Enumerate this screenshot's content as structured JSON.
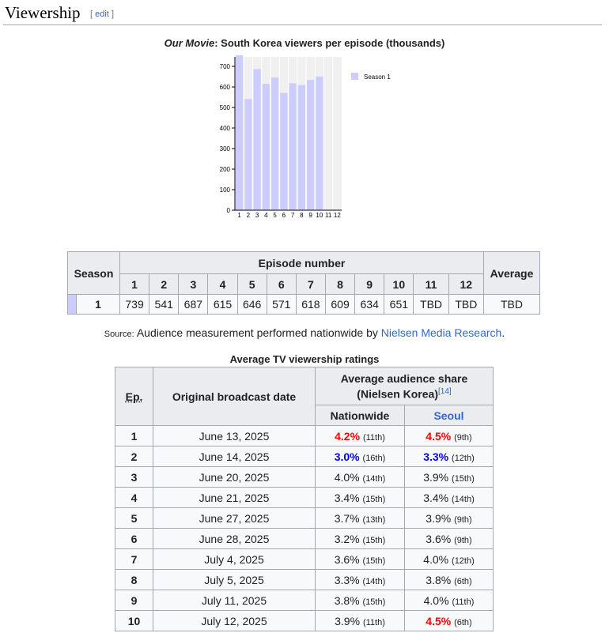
{
  "section": {
    "title": "Viewership",
    "edit_open": "[",
    "edit_label": "edit",
    "edit_close": "]"
  },
  "chart_title": {
    "italic": "Our Movie",
    "rest": ": South Korea viewers per episode (thousands)"
  },
  "chart_data": {
    "type": "bar",
    "categories": [
      "1",
      "2",
      "3",
      "4",
      "5",
      "6",
      "7",
      "8",
      "9",
      "10",
      "11",
      "12"
    ],
    "series": [
      {
        "name": "Season 1",
        "values": [
          739,
          541,
          687,
          615,
          646,
          571,
          618,
          609,
          634,
          651,
          null,
          null
        ],
        "color": "#ccccff"
      }
    ],
    "ylim": [
      0,
      700
    ],
    "yticks": [
      0,
      100,
      200,
      300,
      400,
      500,
      600,
      700
    ],
    "grid": true,
    "legend_position": "right"
  },
  "viewers_table": {
    "season_header": "Season",
    "episode_header": "Episode number",
    "average_header": "Average",
    "episodes": [
      "1",
      "2",
      "3",
      "4",
      "5",
      "6",
      "7",
      "8",
      "9",
      "10",
      "11",
      "12"
    ],
    "row": {
      "season": "1",
      "values": [
        "739",
        "541",
        "687",
        "615",
        "646",
        "571",
        "618",
        "609",
        "634",
        "651",
        "TBD",
        "TBD"
      ],
      "average": "TBD"
    }
  },
  "source": {
    "label": "Source:",
    "text": "Audience measurement performed nationwide by ",
    "link": "Nielsen Media Research",
    "end": "."
  },
  "ratings": {
    "caption": "Average TV viewership ratings",
    "ep_header": "Ep.",
    "date_header": "Original broadcast date",
    "share_header": "Average audience share",
    "share_sub": "(Nielsen Korea)",
    "ref": "[14]",
    "nationwide": "Nationwide",
    "seoul": "Seoul",
    "rows": [
      {
        "ep": "1",
        "date": "June 13, 2025",
        "nat": "4.2%",
        "nat_rank": "(11th)",
        "nat_style": "hi",
        "seo": "4.5%",
        "seo_rank": "(9th)",
        "seo_style": "hi"
      },
      {
        "ep": "2",
        "date": "June 14, 2025",
        "nat": "3.0%",
        "nat_rank": "(16th)",
        "nat_style": "lo",
        "seo": "3.3%",
        "seo_rank": "(12th)",
        "seo_style": "lo"
      },
      {
        "ep": "3",
        "date": "June 20, 2025",
        "nat": "4.0%",
        "nat_rank": "(14th)",
        "nat_style": "",
        "seo": "3.9%",
        "seo_rank": "(15th)",
        "seo_style": ""
      },
      {
        "ep": "4",
        "date": "June 21, 2025",
        "nat": "3.4%",
        "nat_rank": "(15th)",
        "nat_style": "",
        "seo": "3.4%",
        "seo_rank": "(14th)",
        "seo_style": ""
      },
      {
        "ep": "5",
        "date": "June 27, 2025",
        "nat": "3.7%",
        "nat_rank": "(13th)",
        "nat_style": "",
        "seo": "3.9%",
        "seo_rank": "(9th)",
        "seo_style": ""
      },
      {
        "ep": "6",
        "date": "June 28, 2025",
        "nat": "3.2%",
        "nat_rank": "(15th)",
        "nat_style": "",
        "seo": "3.6%",
        "seo_rank": "(9th)",
        "seo_style": ""
      },
      {
        "ep": "7",
        "date": "July 4, 2025",
        "nat": "3.6%",
        "nat_rank": "(15th)",
        "nat_style": "",
        "seo": "4.0%",
        "seo_rank": "(12th)",
        "seo_style": ""
      },
      {
        "ep": "8",
        "date": "July 5, 2025",
        "nat": "3.3%",
        "nat_rank": "(14th)",
        "nat_style": "",
        "seo": "3.8%",
        "seo_rank": "(6th)",
        "seo_style": ""
      },
      {
        "ep": "9",
        "date": "July 11, 2025",
        "nat": "3.8%",
        "nat_rank": "(15th)",
        "nat_style": "",
        "seo": "4.0%",
        "seo_rank": "(11th)",
        "seo_style": ""
      },
      {
        "ep": "10",
        "date": "July 12, 2025",
        "nat": "3.9%",
        "nat_rank": "(11th)",
        "nat_style": "",
        "seo": "4.5%",
        "seo_rank": "(6th)",
        "seo_style": "hi"
      }
    ]
  }
}
